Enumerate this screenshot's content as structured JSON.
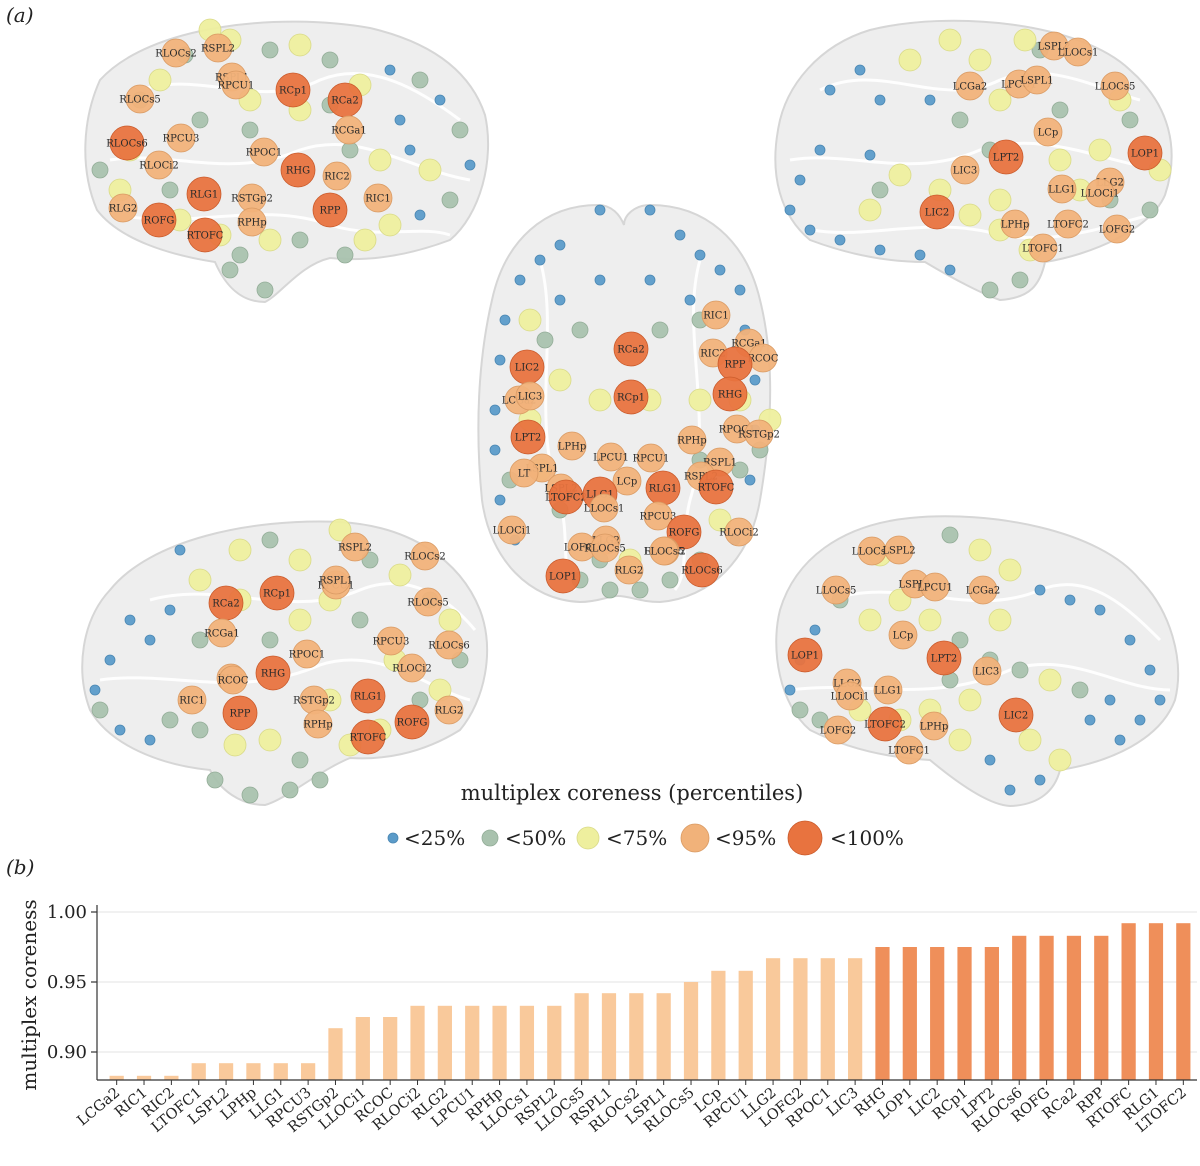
{
  "panel_a_label": "(a)",
  "panel_b_label": "(b)",
  "legend": {
    "title": "multiplex coreness (percentiles)",
    "items": [
      {
        "label": "<25%",
        "color": "#5b9bc9"
      },
      {
        "label": "<50%",
        "color": "#a9c2ae"
      },
      {
        "label": "<75%",
        "color": "#eeef9e"
      },
      {
        "label": "<95%",
        "color": "#f1b27a"
      },
      {
        "label": "<100%",
        "color": "#e8733f"
      }
    ]
  },
  "brain_views": {
    "right_lateral_top": [
      "RSPL2",
      "RLOCs2",
      "RSPL1",
      "RPCU1",
      "RCp1",
      "RCa2",
      "RLOCs5",
      "RCGa1",
      "RLOCs6",
      "RPCU3",
      "RPOC1",
      "RLOCi2",
      "RHG",
      "RIC2",
      "RLG1",
      "RSTGp2",
      "RIC1",
      "RLG2",
      "ROFG",
      "RPP",
      "RPHp",
      "RTOFC"
    ],
    "left_lateral_top": [
      "LSPL2",
      "LLOCs1",
      "LCGa2",
      "LPCU1",
      "LSPL1",
      "LLOCs5",
      "LCp",
      "LOP1",
      "LPT2",
      "LIC3",
      "LLG2",
      "LLG1",
      "LLOCi1",
      "LIC2",
      "LPHp",
      "LTOFC2",
      "LOFG2",
      "LTOFC1"
    ],
    "axial_center": [
      "RIC1",
      "RCGa1",
      "RCOC",
      "RIC2",
      "RPP",
      "RCa2",
      "LIC2",
      "LCGa2",
      "LIC3",
      "RHG",
      "RCp1",
      "RPOC1",
      "RSTGp2",
      "LPT2",
      "LPHp",
      "RPHp",
      "LSPL1",
      "LPCU1",
      "RPCU1",
      "RSPL1",
      "LT",
      "RSPL2",
      "LCp",
      "LSPL2",
      "RLG1",
      "RTOFC",
      "LTOFC2",
      "LLG1",
      "LLOCs1",
      "RPCU3",
      "LLOCi1",
      "ROFG",
      "RLOCi2",
      "LLG2",
      "LOFG2",
      "RLOCs5",
      "RLOCs2",
      "LLOCs5",
      "LOP1",
      "RLG2",
      "RLOCs6"
    ],
    "right_medial_bottom": [
      "RSPL2",
      "RLOCs2",
      "RCp1",
      "RPCU1",
      "RSPL1",
      "RCa2",
      "RLOCs5",
      "RCGa1",
      "RPCU3",
      "RLOCs6",
      "RPOC1",
      "RHG",
      "RIC2",
      "RCOC",
      "RLOCi2",
      "RIC1",
      "RSTGp2",
      "RLG1",
      "RLG2",
      "RPP",
      "RPHp",
      "ROFG",
      "RTOFC"
    ],
    "left_medial_bottom": [
      "LLOCs1",
      "LSPL2",
      "LSPL1",
      "LPCU1",
      "LLOCs5",
      "LCGa2",
      "LCp",
      "LOP1",
      "LPT2",
      "LIC3",
      "LLG2",
      "LLOCi1",
      "LLG1",
      "LIC2",
      "LOFG2",
      "LTOFC2",
      "LPHp",
      "LTOFC1"
    ]
  },
  "chart_data": {
    "type": "bar",
    "title": "",
    "xlabel": "",
    "ylabel": "multiplex coreness",
    "ylim": [
      0.88,
      1.005
    ],
    "yticks": [
      "0.90",
      "0.95",
      "1.00"
    ],
    "grid": true,
    "categories": [
      "LCGa2",
      "RIC1",
      "RIC2",
      "LTOFC1",
      "LSPL2",
      "LPHp",
      "LLG1",
      "RPCU3",
      "RSTGp2",
      "LLOCi1",
      "RCOC",
      "RLOCi2",
      "RLG2",
      "LPCU1",
      "RPHp",
      "LLOCs1",
      "RSPL2",
      "LLOCs5",
      "RSPL1",
      "RLOCs2",
      "LSPL1",
      "RLOCs5",
      "LCp",
      "RPCU1",
      "LLG2",
      "LOFG2",
      "RPOC1",
      "LIC3",
      "RHG",
      "LOP1",
      "LIC2",
      "RCp1",
      "LPT2",
      "RLOCs6",
      "ROFG",
      "RCa2",
      "RPP",
      "RTOFC",
      "RLG1",
      "LTOFC2"
    ],
    "values": [
      0.883,
      0.883,
      0.883,
      0.892,
      0.892,
      0.892,
      0.892,
      0.892,
      0.917,
      0.925,
      0.925,
      0.933,
      0.933,
      0.933,
      0.933,
      0.933,
      0.933,
      0.942,
      0.942,
      0.942,
      0.942,
      0.95,
      0.958,
      0.958,
      0.967,
      0.967,
      0.967,
      0.967,
      0.975,
      0.975,
      0.975,
      0.975,
      0.975,
      0.983,
      0.983,
      0.983,
      0.983,
      0.992,
      0.992,
      0.992
    ],
    "percentile_class": [
      "<95%",
      "<95%",
      "<95%",
      "<95%",
      "<95%",
      "<95%",
      "<95%",
      "<95%",
      "<95%",
      "<95%",
      "<95%",
      "<95%",
      "<95%",
      "<95%",
      "<95%",
      "<95%",
      "<95%",
      "<95%",
      "<95%",
      "<95%",
      "<95%",
      "<95%",
      "<95%",
      "<95%",
      "<95%",
      "<95%",
      "<95%",
      "<95%",
      "<100%",
      "<100%",
      "<100%",
      "<100%",
      "<100%",
      "<100%",
      "<100%",
      "<100%",
      "<100%",
      "<100%",
      "<100%",
      "<100%"
    ]
  }
}
